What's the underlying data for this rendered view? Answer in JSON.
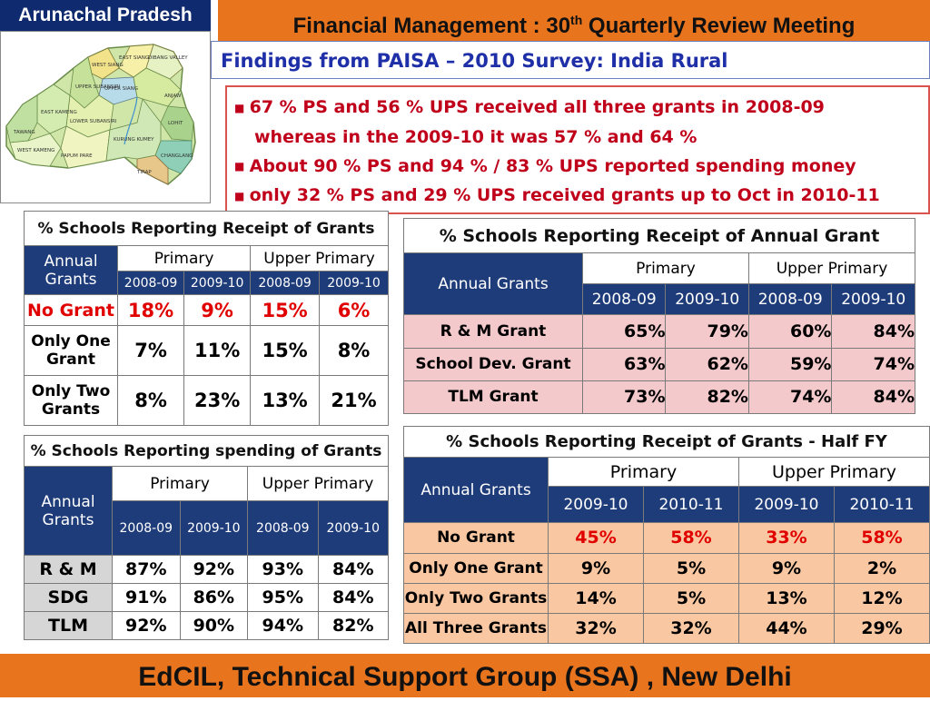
{
  "header": {
    "state": "Arunachal Pradesh",
    "title_main": "Financial Management : 30",
    "title_sup": "th",
    "title_rest": " Quarterly Review Meeting",
    "subtitle": "Findings from PAISA – 2010  Survey: India Rural"
  },
  "findings": [
    "67 % PS and 56 % UPS received all three grants in 2008-09",
    "whereas   in the  2009-10 it was 57 % and 64 %",
    "About 90 % PS  and 94 % /  83 % UPS reported spending money",
    "only 32 % PS and 29 % UPS received grants up to Oct in 2010-11"
  ],
  "map_labels": [
    "TAWANG",
    "WEST KAMENG",
    "EAST KAMENG",
    "PAPUM PARE",
    "LOWER SUBANSIRI",
    "UPPER SUBANSIRI",
    "WEST SIANG",
    "EAST SIANG",
    "UPPER SIANG",
    "DIBANG VALLEY",
    "LOHIT",
    "CHANGLANG",
    "TIRAP",
    "KURUNG KUMEY",
    "ANJAW"
  ],
  "table_receipt": {
    "title": "% Schools Reporting Receipt of Grants",
    "col_head": "Annual Grants",
    "groups": [
      "Primary",
      "Upper Primary"
    ],
    "years": [
      "2008-09",
      "2009-10",
      "2008-09",
      "2009-10"
    ],
    "rows": [
      {
        "label": "No Grant",
        "values": [
          "18%",
          "9%",
          "15%",
          "6%"
        ]
      },
      {
        "label": "Only One Grant",
        "values": [
          "7%",
          "11%",
          "15%",
          "8%"
        ]
      },
      {
        "label": "Only Two Grants",
        "values": [
          "8%",
          "23%",
          "13%",
          "21%"
        ]
      }
    ]
  },
  "table_annual": {
    "title": "% Schools Reporting Receipt of  Annual Grant",
    "col_head": "Annual Grants",
    "groups": [
      "Primary",
      "Upper Primary"
    ],
    "years": [
      "2008-09",
      "2009-10",
      "2008-09",
      "2009-10"
    ],
    "rows": [
      {
        "label": "R & M Grant",
        "values": [
          "65%",
          "79%",
          "60%",
          "84%"
        ]
      },
      {
        "label": "School Dev. Grant",
        "values": [
          "63%",
          "62%",
          "59%",
          "74%"
        ]
      },
      {
        "label": "TLM Grant",
        "values": [
          "73%",
          "82%",
          "74%",
          "84%"
        ]
      }
    ]
  },
  "table_spending": {
    "title": "% Schools Reporting spending of Grants",
    "col_head": "Annual Grants",
    "groups": [
      "Primary",
      "Upper Primary"
    ],
    "years": [
      "2008-09",
      "2009-10",
      "2008-09",
      "2009-10"
    ],
    "rows": [
      {
        "label": "R & M",
        "values": [
          "87%",
          "92%",
          "93%",
          "84%"
        ]
      },
      {
        "label": "SDG",
        "values": [
          "91%",
          "86%",
          "95%",
          "84%"
        ]
      },
      {
        "label": "TLM",
        "values": [
          "92%",
          "90%",
          "94%",
          "82%"
        ]
      }
    ]
  },
  "table_halffy": {
    "title": "% Schools Reporting Receipt of Grants - Half FY",
    "col_head": "Annual Grants",
    "groups": [
      "Primary",
      "Upper Primary"
    ],
    "years": [
      "2009-10",
      "2010-11",
      "2009-10",
      "2010-11"
    ],
    "rows": [
      {
        "label": "No Grant",
        "values": [
          "45%",
          "58%",
          "33%",
          "58%"
        ]
      },
      {
        "label": "Only One Grant",
        "values": [
          "9%",
          "5%",
          "9%",
          "2%"
        ]
      },
      {
        "label": "Only Two Grants",
        "values": [
          "14%",
          "5%",
          "13%",
          "12%"
        ]
      },
      {
        "label": "All Three Grants",
        "values": [
          "32%",
          "32%",
          "44%",
          "29%"
        ]
      }
    ]
  },
  "footer": "EdCIL, Technical Support Group (SSA) , New Delhi",
  "colors": {
    "orange": "#e8741e",
    "navy": "#1f3c7a",
    "alert_red": "#e00000",
    "pink_fill": "#f4c9cc",
    "peach_fill": "#f9c7a1"
  }
}
